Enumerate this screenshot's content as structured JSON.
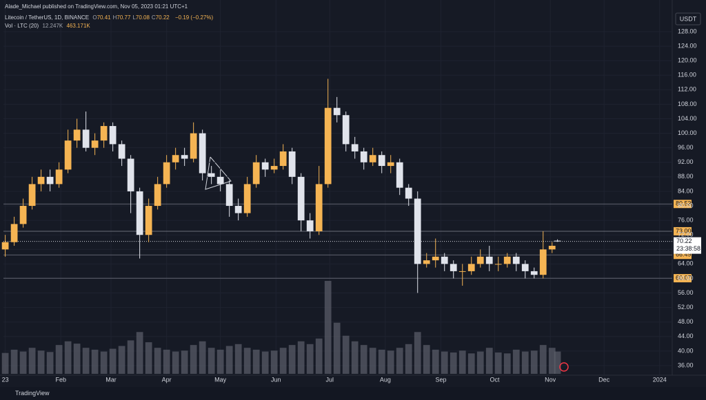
{
  "header": {
    "publisher": "Alade_Michael published on TradingView.com, Nov 05, 2023 01:21 UTC+1",
    "symbol": "Litecoin / TetherUS, 1D, BINANCE",
    "change": "−0.19 (−0.27%)",
    "volume_title": "Vol · LTC (20)",
    "volume_values": [
      "12.247K",
      "463.171K"
    ],
    "currency": "USDT",
    "countdown": "23:38:58",
    "brand": "TradingView"
  },
  "chart_data": {
    "type": "candlestick",
    "ohlc_names": [
      "O",
      "H",
      "L",
      "C"
    ],
    "x": [
      0,
      5,
      10,
      15,
      20,
      25,
      30,
      35,
      40,
      45,
      50,
      55,
      60,
      65,
      70,
      75,
      80,
      85,
      90,
      95,
      100,
      105,
      110,
      115,
      120,
      125,
      130,
      135,
      140,
      145,
      150,
      155,
      160,
      165,
      170,
      175,
      180,
      185,
      190,
      195,
      200,
      205,
      210,
      215,
      220,
      225,
      230,
      235,
      240,
      245,
      250,
      255,
      260,
      265,
      270,
      275,
      280,
      285,
      290,
      295,
      300,
      305,
      308
    ],
    "open": [
      68,
      70,
      75,
      80,
      86,
      88,
      86,
      90,
      98,
      101,
      96,
      98,
      102,
      97,
      93,
      84,
      72,
      80,
      86,
      92,
      94,
      93,
      100,
      89,
      88,
      86,
      80,
      78,
      86,
      92,
      90,
      91,
      95,
      88,
      76,
      73,
      86,
      107,
      105,
      97,
      95,
      92,
      94,
      91,
      92,
      85,
      82,
      64,
      65,
      66,
      64,
      62,
      62,
      64,
      66,
      64,
      64,
      66,
      64,
      62,
      61,
      68,
      70.41
    ],
    "high": [
      72,
      77,
      82,
      88,
      90,
      90,
      92,
      101,
      104,
      106,
      100,
      103,
      103,
      98,
      94,
      85,
      82,
      88,
      94,
      96,
      96,
      103,
      101,
      91,
      90,
      87,
      82,
      88,
      94,
      93,
      93,
      97,
      96,
      89,
      78,
      91,
      115,
      110,
      106,
      99,
      96,
      96,
      95,
      94,
      93,
      86,
      84,
      67,
      71,
      67,
      65,
      64,
      66,
      68,
      69,
      66,
      67,
      67,
      65,
      63,
      73,
      70,
      70.77
    ],
    "low": [
      66,
      69,
      74,
      79,
      84,
      84,
      85,
      89,
      96,
      95,
      94,
      96,
      95,
      91,
      78,
      65.5,
      70,
      79,
      85,
      90,
      91,
      92,
      87,
      86,
      84,
      77,
      76,
      77,
      85,
      88,
      89,
      90,
      86,
      73,
      71,
      72,
      85,
      103,
      95,
      93,
      90,
      91,
      89,
      89,
      83,
      80,
      56,
      63,
      63,
      62,
      60,
      58,
      61,
      63,
      62,
      62,
      63,
      62,
      60,
      60,
      60,
      67,
      70.08
    ],
    "close": [
      70,
      75,
      80,
      86,
      88,
      86,
      90,
      98,
      101,
      96,
      98,
      102,
      97,
      93,
      84,
      72,
      80,
      86,
      92,
      94,
      93,
      100,
      89,
      88,
      86,
      80,
      78,
      86,
      92,
      90,
      91,
      95,
      88,
      76,
      73,
      86,
      107,
      105,
      97,
      95,
      92,
      94,
      91,
      92,
      85,
      82,
      64,
      65,
      66,
      64,
      62,
      62,
      64,
      66,
      64,
      64,
      66,
      64,
      62,
      61,
      68,
      69,
      70.22
    ],
    "volume": [
      450,
      520,
      480,
      560,
      500,
      470,
      620,
      700,
      650,
      560,
      520,
      480,
      540,
      600,
      720,
      900,
      680,
      560,
      520,
      480,
      500,
      620,
      700,
      560,
      520,
      600,
      640,
      560,
      520,
      480,
      500,
      560,
      620,
      700,
      640,
      760,
      2000,
      1100,
      820,
      700,
      620,
      560,
      520,
      500,
      560,
      640,
      900,
      620,
      520,
      480,
      460,
      500,
      440,
      480,
      560,
      460,
      440,
      520,
      480,
      500,
      620,
      560,
      480
    ],
    "up_color": "#f5b453",
    "down_color": "#e0e3eb",
    "volume_color": "#5d606b",
    "xlim": [
      -1,
      372
    ],
    "xticks": [
      {
        "value": 0,
        "label": "23"
      },
      {
        "value": 31,
        "label": "Feb"
      },
      {
        "value": 59,
        "label": "Mar"
      },
      {
        "value": 90,
        "label": "Apr"
      },
      {
        "value": 120,
        "label": "May"
      },
      {
        "value": 151,
        "label": "Jun"
      },
      {
        "value": 181,
        "label": "Jul"
      },
      {
        "value": 212,
        "label": "Aug"
      },
      {
        "value": 243,
        "label": "Sep"
      },
      {
        "value": 273,
        "label": "Oct"
      },
      {
        "value": 304,
        "label": "Nov"
      },
      {
        "value": 334,
        "label": "Dec"
      },
      {
        "value": 365,
        "label": "2024"
      }
    ],
    "ylim": [
      33.34,
      132.93
    ],
    "yticks": [
      {
        "value": 36,
        "label": "36.00"
      },
      {
        "value": 40,
        "label": "40.00"
      },
      {
        "value": 44,
        "label": "44.00"
      },
      {
        "value": 48,
        "label": "48.00"
      },
      {
        "value": 52,
        "label": "52.00"
      },
      {
        "value": 56,
        "label": "56.00"
      },
      {
        "value": 60,
        "label": "60.00"
      },
      {
        "value": 64,
        "label": "64.00"
      },
      {
        "value": 68,
        "label": "68.00"
      },
      {
        "value": 72,
        "label": "72.00"
      },
      {
        "value": 76,
        "label": "76.00"
      },
      {
        "value": 80,
        "label": "80.00"
      },
      {
        "value": 84,
        "label": "84.00"
      },
      {
        "value": 88,
        "label": "88.00"
      },
      {
        "value": 92,
        "label": "92.00"
      },
      {
        "value": 96,
        "label": "96.00"
      },
      {
        "value": 100,
        "label": "100.00"
      },
      {
        "value": 104,
        "label": "104.00"
      },
      {
        "value": 108,
        "label": "108.00"
      },
      {
        "value": 112,
        "label": "112.00"
      },
      {
        "value": 116,
        "label": "116.00"
      },
      {
        "value": 120,
        "label": "120.00"
      },
      {
        "value": 124,
        "label": "124.00"
      },
      {
        "value": 128,
        "label": "128.00"
      }
    ],
    "levels": [
      80.53,
      {
        "value": 73,
        "label": "73.00"
      },
      66.49,
      60.07
    ],
    "grid": true
  }
}
